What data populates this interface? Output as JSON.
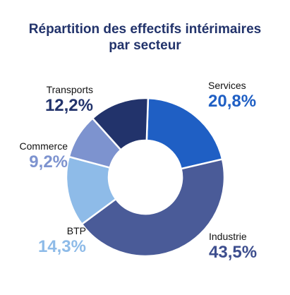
{
  "title_line1": "Répartition des effectifs intérimaires",
  "title_line2": "par secteur",
  "chart_data": {
    "type": "pie",
    "donut": true,
    "title": "Répartition des effectifs intérimaires par secteur",
    "slices": [
      {
        "name": "Services",
        "value": 20.8,
        "label": "20,8%",
        "color": "#1f5fc4",
        "text_color": "#1f5fc4"
      },
      {
        "name": "Industrie",
        "value": 43.5,
        "label": "43,5%",
        "color": "#4a5b98",
        "text_color": "#3d4e8e"
      },
      {
        "name": "BTP",
        "value": 14.3,
        "label": "14,3%",
        "color": "#8ebbe8",
        "text_color": "#8ebbe8"
      },
      {
        "name": "Commerce",
        "value": 9.2,
        "label": "9,2%",
        "color": "#7d93cf",
        "text_color": "#7d93cf"
      },
      {
        "name": "Transports",
        "value": 12.2,
        "label": "12,2%",
        "color": "#22336b",
        "text_color": "#22336b"
      }
    ]
  }
}
